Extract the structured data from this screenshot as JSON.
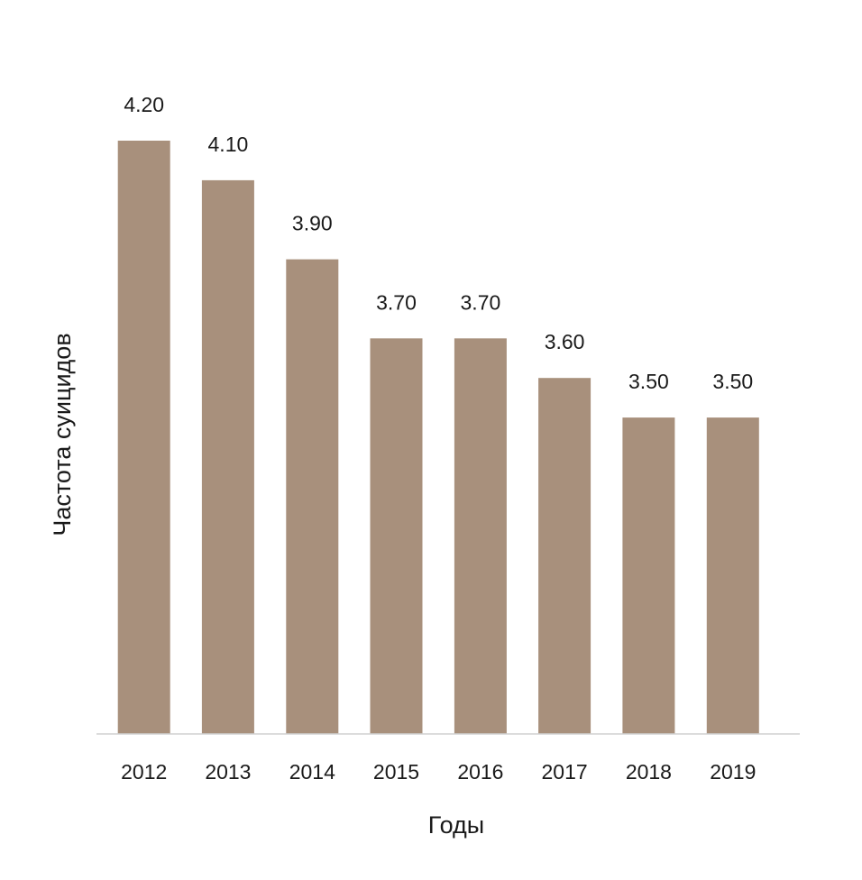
{
  "chart_data": {
    "type": "bar",
    "categories": [
      "2012",
      "2013",
      "2014",
      "2015",
      "2016",
      "2017",
      "2018",
      "2019"
    ],
    "values": [
      4.2,
      4.1,
      3.9,
      3.7,
      3.7,
      3.6,
      3.5,
      3.5
    ],
    "value_labels": [
      "4.20",
      "4.10",
      "3.90",
      "3.70",
      "3.70",
      "3.60",
      "3.50",
      "3.50"
    ],
    "title": "",
    "xlabel": "Годы",
    "ylabel": "Частота суицидов",
    "ylim": [
      2.7,
      4.2
    ],
    "grid": false,
    "legend": "none",
    "colors": {
      "bar": "#a8907c",
      "axis": "#d0d0d0",
      "text": "#1a1a1a"
    }
  }
}
